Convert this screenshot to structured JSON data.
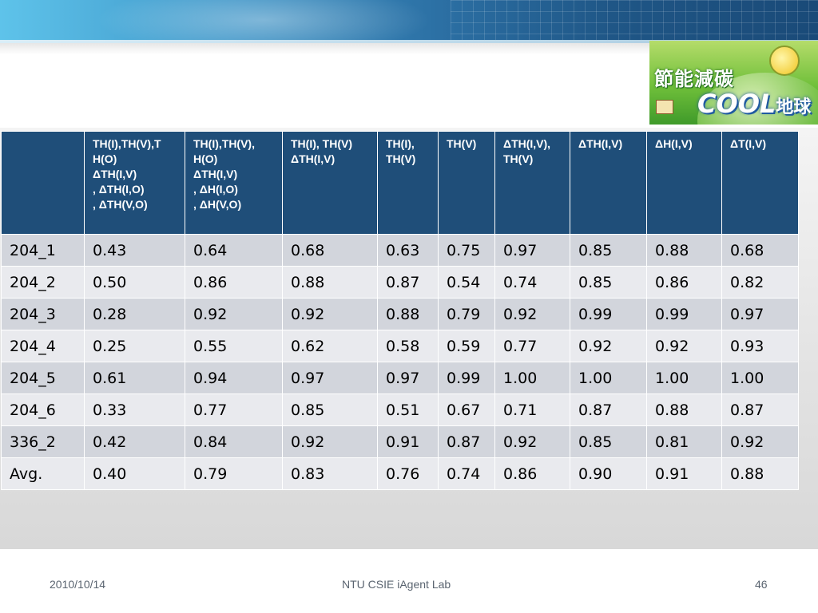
{
  "logo": {
    "cjk_text": "節能減碳",
    "cool_text": "COOL",
    "earth_text": "地球"
  },
  "table": {
    "headers": [
      "",
      "TH(I),TH(V),T\nH(O)\nΔTH(I,V)\n, ΔTH(I,O)\n, ΔTH(V,O)",
      "TH(I),TH(V),\nH(O)\nΔTH(I,V)\n, ΔH(I,O)\n, ΔH(V,O)",
      "TH(I), TH(V)\nΔTH(I,V)",
      "TH(I),\nTH(V)",
      "TH(V)",
      "ΔTH(I,V),\nTH(V)",
      "ΔTH(I,V)",
      "ΔH(I,V)",
      "ΔT(I,V)"
    ],
    "rows": [
      [
        "204_1",
        "0.43",
        "0.64",
        "0.68",
        "0.63",
        "0.75",
        "0.97",
        "0.85",
        "0.88",
        "0.68"
      ],
      [
        "204_2",
        "0.50",
        "0.86",
        "0.88",
        "0.87",
        "0.54",
        "0.74",
        "0.85",
        "0.86",
        "0.82"
      ],
      [
        "204_3",
        "0.28",
        "0.92",
        "0.92",
        "0.88",
        "0.79",
        "0.92",
        "0.99",
        "0.99",
        "0.97"
      ],
      [
        "204_4",
        "0.25",
        "0.55",
        "0.62",
        "0.58",
        "0.59",
        "0.77",
        "0.92",
        "0.92",
        "0.93"
      ],
      [
        "204_5",
        "0.61",
        "0.94",
        "0.97",
        "0.97",
        "0.99",
        "1.00",
        "1.00",
        "1.00",
        "1.00"
      ],
      [
        "204_6",
        "0.33",
        "0.77",
        "0.85",
        "0.51",
        "0.67",
        "0.71",
        "0.87",
        "0.88",
        "0.87"
      ],
      [
        "336_2",
        "0.42",
        "0.84",
        "0.92",
        "0.91",
        "0.87",
        "0.92",
        "0.85",
        "0.81",
        "0.92"
      ],
      [
        "Avg.",
        "0.40",
        "0.79",
        "0.83",
        "0.76",
        "0.74",
        "0.86",
        "0.90",
        "0.91",
        "0.88"
      ]
    ]
  },
  "footer": {
    "date": "2010/10/14",
    "center": "NTU CSIE iAgent Lab",
    "page": "46"
  }
}
